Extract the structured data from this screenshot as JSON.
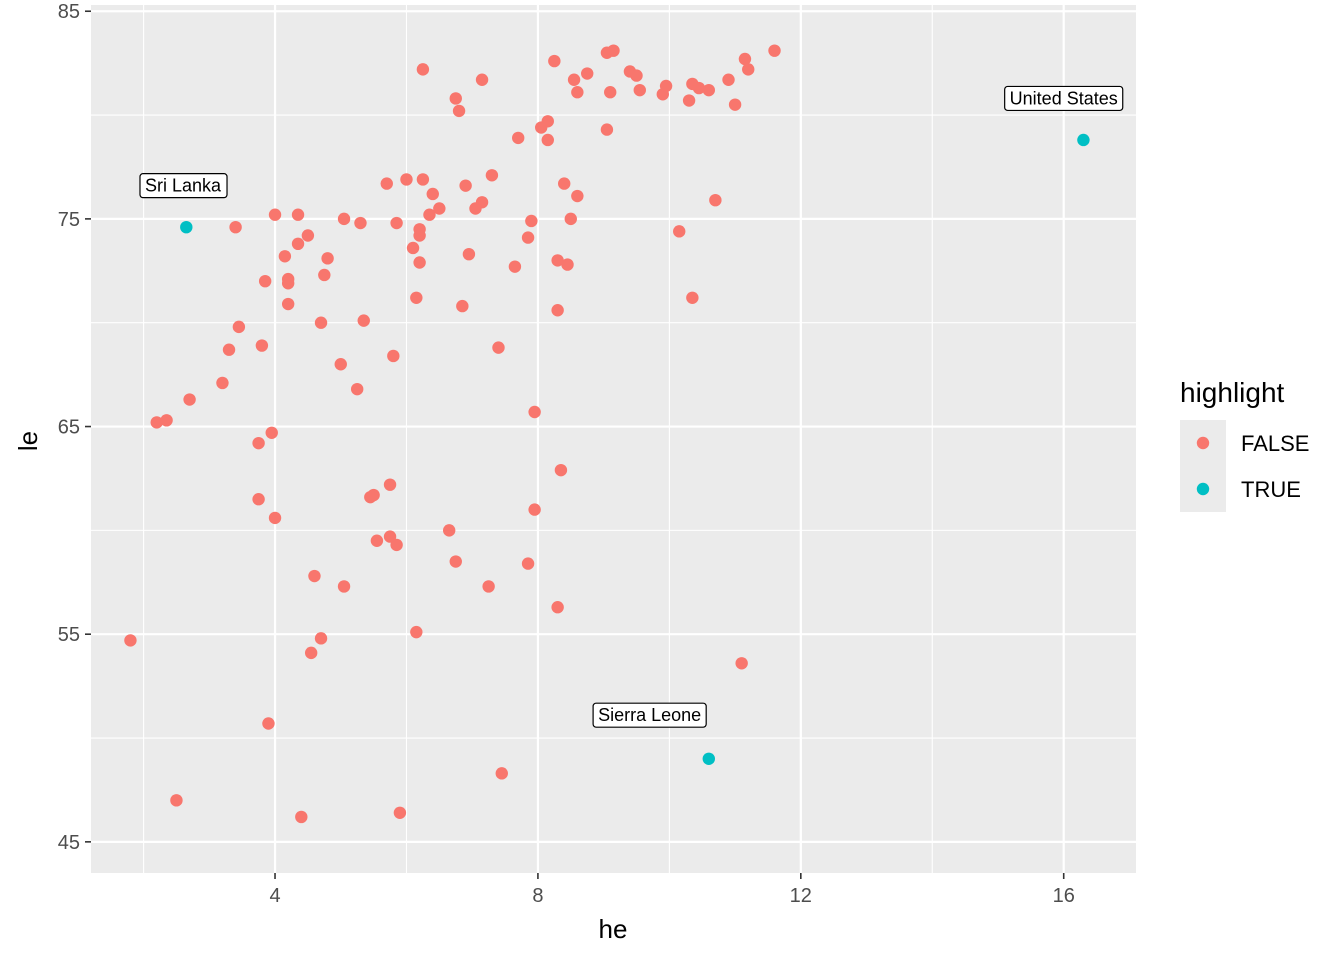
{
  "chart_data": {
    "type": "scatter",
    "xlabel": "he",
    "ylabel": "le",
    "xlim": [
      1.2,
      17.1
    ],
    "ylim": [
      43.5,
      85.3
    ],
    "x_ticks": [
      4,
      8,
      12,
      16
    ],
    "y_ticks": [
      45,
      55,
      65,
      75,
      85
    ],
    "x_tick_labels": [
      "4",
      "8",
      "12",
      "16"
    ],
    "y_tick_labels": [
      "45",
      "55",
      "65",
      "75",
      "85"
    ],
    "panel_background": "#EBEBEB",
    "grid": true,
    "legend": {
      "title": "highlight",
      "position": "right",
      "entries": [
        {
          "label": "FALSE",
          "color": "#F8766D"
        },
        {
          "label": "TRUE",
          "color": "#00BFC4"
        }
      ]
    },
    "annotations": [
      {
        "label": "Sri Lanka",
        "x": 2.6,
        "y": 76.6
      },
      {
        "label": "United States",
        "x": 16.0,
        "y": 80.8
      },
      {
        "label": "Sierra Leone",
        "x": 9.7,
        "y": 51.1
      }
    ],
    "series": [
      {
        "name": "FALSE",
        "color": "#F8766D",
        "points": [
          [
            1.8,
            54.7
          ],
          [
            2.2,
            65.2
          ],
          [
            2.35,
            65.3
          ],
          [
            2.5,
            47.0
          ],
          [
            2.7,
            66.3
          ],
          [
            3.2,
            67.1
          ],
          [
            3.3,
            68.7
          ],
          [
            3.4,
            74.6
          ],
          [
            3.45,
            69.8
          ],
          [
            3.75,
            61.5
          ],
          [
            3.75,
            64.2
          ],
          [
            3.8,
            68.9
          ],
          [
            3.85,
            72.0
          ],
          [
            3.9,
            50.7
          ],
          [
            3.95,
            64.7
          ],
          [
            4.0,
            60.6
          ],
          [
            4.0,
            75.2
          ],
          [
            4.15,
            73.2
          ],
          [
            4.2,
            71.9
          ],
          [
            4.2,
            72.1
          ],
          [
            4.2,
            70.9
          ],
          [
            4.35,
            75.2
          ],
          [
            4.35,
            73.8
          ],
          [
            4.4,
            46.2
          ],
          [
            4.5,
            74.2
          ],
          [
            4.55,
            54.1
          ],
          [
            4.6,
            57.8
          ],
          [
            4.7,
            54.8
          ],
          [
            4.7,
            70.0
          ],
          [
            4.75,
            72.3
          ],
          [
            4.8,
            73.1
          ],
          [
            5.0,
            68.0
          ],
          [
            5.05,
            57.3
          ],
          [
            5.05,
            75.0
          ],
          [
            5.25,
            66.8
          ],
          [
            5.3,
            74.8
          ],
          [
            5.35,
            70.1
          ],
          [
            5.45,
            61.6
          ],
          [
            5.5,
            61.7
          ],
          [
            5.55,
            59.5
          ],
          [
            5.7,
            76.7
          ],
          [
            5.75,
            59.7
          ],
          [
            5.75,
            62.2
          ],
          [
            5.8,
            68.4
          ],
          [
            5.85,
            59.3
          ],
          [
            5.85,
            74.8
          ],
          [
            5.9,
            46.4
          ],
          [
            6.0,
            76.9
          ],
          [
            6.1,
            73.6
          ],
          [
            6.15,
            71.2
          ],
          [
            6.15,
            55.1
          ],
          [
            6.2,
            74.2
          ],
          [
            6.2,
            74.5
          ],
          [
            6.2,
            72.9
          ],
          [
            6.25,
            76.9
          ],
          [
            6.25,
            82.2
          ],
          [
            6.35,
            75.2
          ],
          [
            6.4,
            76.2
          ],
          [
            6.5,
            75.5
          ],
          [
            6.65,
            60.0
          ],
          [
            6.75,
            58.5
          ],
          [
            6.75,
            80.8
          ],
          [
            6.8,
            80.2
          ],
          [
            6.85,
            70.8
          ],
          [
            6.9,
            76.6
          ],
          [
            6.95,
            73.3
          ],
          [
            7.05,
            75.5
          ],
          [
            7.15,
            75.8
          ],
          [
            7.15,
            81.7
          ],
          [
            7.25,
            57.3
          ],
          [
            7.3,
            77.1
          ],
          [
            7.4,
            68.8
          ],
          [
            7.45,
            48.3
          ],
          [
            7.65,
            72.7
          ],
          [
            7.7,
            78.9
          ],
          [
            7.85,
            58.4
          ],
          [
            7.85,
            74.1
          ],
          [
            7.9,
            74.9
          ],
          [
            7.95,
            65.7
          ],
          [
            7.95,
            61.0
          ],
          [
            8.05,
            79.4
          ],
          [
            8.15,
            78.8
          ],
          [
            8.15,
            79.7
          ],
          [
            8.25,
            82.6
          ],
          [
            8.3,
            70.6
          ],
          [
            8.3,
            56.3
          ],
          [
            8.3,
            73.0
          ],
          [
            8.35,
            62.9
          ],
          [
            8.4,
            76.7
          ],
          [
            8.45,
            72.8
          ],
          [
            8.5,
            75.0
          ],
          [
            8.55,
            81.7
          ],
          [
            8.6,
            81.1
          ],
          [
            8.6,
            76.1
          ],
          [
            8.75,
            82.0
          ],
          [
            9.05,
            79.3
          ],
          [
            9.05,
            83.0
          ],
          [
            9.1,
            81.1
          ],
          [
            9.15,
            83.1
          ],
          [
            9.4,
            82.1
          ],
          [
            9.5,
            81.9
          ],
          [
            9.55,
            81.2
          ],
          [
            9.9,
            81.0
          ],
          [
            9.95,
            81.4
          ],
          [
            10.15,
            74.4
          ],
          [
            10.3,
            80.7
          ],
          [
            10.35,
            71.2
          ],
          [
            10.35,
            81.5
          ],
          [
            10.45,
            81.3
          ],
          [
            10.6,
            81.2
          ],
          [
            10.7,
            75.9
          ],
          [
            10.9,
            81.7
          ],
          [
            11.0,
            80.5
          ],
          [
            11.1,
            53.6
          ],
          [
            11.15,
            82.7
          ],
          [
            11.2,
            82.2
          ],
          [
            11.6,
            83.1
          ]
        ]
      },
      {
        "name": "TRUE",
        "color": "#00BFC4",
        "points": [
          [
            2.65,
            74.6
          ],
          [
            16.3,
            78.8
          ],
          [
            10.6,
            49.0
          ]
        ]
      }
    ]
  }
}
